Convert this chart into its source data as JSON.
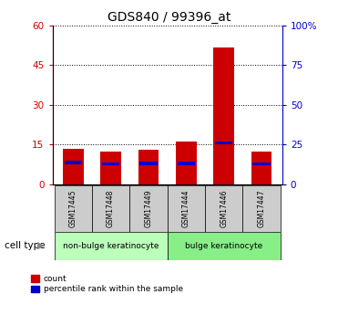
{
  "title": "GDS840 / 99396_at",
  "samples": [
    "GSM17445",
    "GSM17448",
    "GSM17449",
    "GSM17444",
    "GSM17446",
    "GSM17447"
  ],
  "count_values": [
    13.5,
    12.5,
    13.0,
    16.0,
    51.5,
    12.5
  ],
  "percentile_values": [
    14.8,
    13.8,
    14.2,
    14.0,
    27.0,
    13.8
  ],
  "left_ylim": [
    0,
    60
  ],
  "right_ylim": [
    0,
    100
  ],
  "left_yticks": [
    0,
    15,
    30,
    45,
    60
  ],
  "right_yticks": [
    0,
    25,
    50,
    75,
    100
  ],
  "right_yticklabels": [
    "0",
    "25",
    "50",
    "75",
    "100%"
  ],
  "red_color": "#cc0000",
  "blue_color": "#0000cc",
  "bar_width": 0.55,
  "non_bulge_color": "#bbffbb",
  "bulge_color": "#88ee88",
  "cell_type_label": "cell type",
  "legend_count": "count",
  "legend_percentile": "percentile rank within the sample",
  "title_fontsize": 10,
  "axis_fontsize": 7.5,
  "label_fontsize": 7
}
